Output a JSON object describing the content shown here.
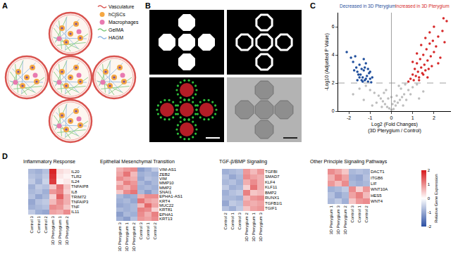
{
  "panels": [
    "A",
    "B",
    "C",
    "D"
  ],
  "diagram": {
    "legend": [
      {
        "label": "Vasculature",
        "color": "#d9534f",
        "marker": "line"
      },
      {
        "label": "hCjSCs",
        "color": "#f5a742",
        "marker": "circle"
      },
      {
        "label": "Macrophages",
        "color": "#e87ab0",
        "marker": "circle"
      },
      {
        "label": "GelMA",
        "color": "#7ac77a",
        "marker": "line"
      },
      {
        "label": "HAGM",
        "color": "#8ab4e0",
        "marker": "line"
      }
    ]
  },
  "chart_data": [
    {
      "type": "scatter",
      "x_label": [
        "Log2 (Fold Changes)",
        "(3D Pterygium / Control)"
      ],
      "y_label": "-Log10 (Adjusted P Value)",
      "xlim": [
        -2.5,
        2.8
      ],
      "xticks": [
        -2,
        -1,
        0,
        1,
        2
      ],
      "ylim": [
        0,
        7
      ],
      "yticks": [
        0,
        2,
        4,
        6
      ],
      "grid": false,
      "marker": "circle",
      "line_style": "dash",
      "threshold_y": 2,
      "threshold_x": 0,
      "annotations": [
        {
          "text": "Decreased in 3D Pterygium",
          "color": "#1f4e9c"
        },
        {
          "text": "Increased in 3D Pterygium",
          "color": "#d62728"
        }
      ],
      "series": [
        {
          "color": "#bdbdbd",
          "x": [
            -1.8,
            -1.5,
            -1.2,
            -1.0,
            -0.8,
            -0.6,
            -0.5,
            -0.4,
            -0.3,
            -0.2,
            -0.1,
            0,
            0.1,
            0.2,
            0.3,
            0.4,
            0.5,
            0.6,
            0.8,
            1.0,
            1.2,
            1.5,
            -0.7,
            -0.35,
            -0.15,
            0.05,
            0.25,
            0.45,
            0.7,
            0.9,
            -0.9,
            -0.45,
            0.15,
            0.35,
            0.55,
            -0.25,
            0.65,
            1.3,
            -1.3,
            0.0
          ],
          "y": [
            1.2,
            1.6,
            1.8,
            1.5,
            1.3,
            1.1,
            0.9,
            0.7,
            0.5,
            0.3,
            0.2,
            0.1,
            0.15,
            0.4,
            0.6,
            0.8,
            1.0,
            1.2,
            1.5,
            1.7,
            1.9,
            1.4,
            0.6,
            1.3,
            0.9,
            0.5,
            1.1,
            1.6,
            0.8,
            1.2,
            0.4,
            0.3,
            0.7,
            1.8,
            0.4,
            1.5,
            1.9,
            0.9,
            0.8,
            1.0
          ]
        },
        {
          "color": "#1f4e9c",
          "x": [
            -2.1,
            -1.9,
            -1.8,
            -1.7,
            -1.65,
            -1.6,
            -1.5,
            -1.45,
            -1.4,
            -1.35,
            -1.3,
            -1.25,
            -1.2,
            -1.15,
            -1.1,
            -1.05,
            -1.0,
            -0.95,
            -1.55,
            -1.75,
            -1.3,
            -1.2,
            -1.4,
            -1.1,
            -0.9,
            -1.6,
            -1.0,
            -1.35,
            -1.5,
            -1.25
          ],
          "y": [
            4.2,
            3.8,
            3.5,
            3.9,
            3.1,
            2.8,
            3.3,
            2.6,
            3.0,
            2.4,
            2.9,
            2.2,
            3.4,
            2.5,
            2.1,
            2.7,
            2.3,
            2.05,
            2.6,
            2.9,
            3.7,
            2.3,
            2.2,
            3.0,
            2.4,
            2.2,
            2.8,
            2.1,
            2.4,
            3.1
          ]
        },
        {
          "color": "#d62728",
          "x": [
            0.8,
            0.9,
            1.0,
            1.05,
            1.1,
            1.15,
            1.2,
            1.25,
            1.3,
            1.35,
            1.4,
            1.45,
            1.5,
            1.55,
            1.6,
            1.65,
            1.7,
            1.75,
            1.8,
            1.85,
            1.9,
            1.95,
            2.0,
            2.1,
            2.2,
            2.3,
            2.4,
            2.5,
            2.6,
            1.0,
            1.2,
            1.4,
            1.6,
            1.8,
            2.0,
            2.2,
            1.3,
            1.5,
            1.7,
            2.45
          ],
          "y": [
            2.1,
            2.3,
            2.6,
            2.2,
            3.0,
            2.5,
            3.4,
            2.8,
            2.4,
            3.7,
            3.1,
            2.7,
            4.0,
            3.3,
            2.9,
            4.4,
            3.6,
            3.0,
            4.8,
            3.9,
            3.2,
            5.0,
            4.2,
            4.6,
            5.3,
            3.8,
            5.7,
            4.9,
            6.4,
            3.5,
            4.1,
            4.7,
            5.2,
            5.6,
            6.0,
            3.4,
            2.2,
            2.6,
            2.4,
            6.6
          ]
        }
      ]
    },
    {
      "type": "heatmap",
      "title": "Inflammatory Response",
      "categories": [
        "Control 3",
        "Control 1",
        "Control 2",
        "3D Pterygium 3",
        "3D Pterygium 1",
        "3D Pterygium 2"
      ],
      "rows": [
        "IL20",
        "TLR2",
        "IL24",
        "TNFAIP8",
        "IL8",
        "TRIM72",
        "TNFAIP3",
        "TNF",
        "IL11"
      ],
      "values": [
        [
          -0.8,
          -0.9,
          -0.7,
          1.9,
          0.3,
          0.2
        ],
        [
          -0.7,
          -0.8,
          -0.6,
          1.8,
          0.2,
          0.1
        ],
        [
          -0.6,
          -0.9,
          -0.5,
          1.7,
          0.1,
          0.2
        ],
        [
          -0.9,
          -0.6,
          -0.7,
          0.5,
          1.2,
          0.5
        ],
        [
          -0.8,
          -0.7,
          -0.9,
          0.9,
          1.1,
          0.4
        ],
        [
          -0.7,
          -1.0,
          -0.8,
          0.4,
          1.4,
          0.7
        ],
        [
          -1.0,
          -0.7,
          -0.6,
          0.6,
          1.0,
          0.7
        ],
        [
          -0.9,
          -0.8,
          -0.7,
          1.0,
          0.9,
          0.5
        ],
        [
          -0.6,
          -0.9,
          -1.0,
          0.8,
          0.7,
          1.0
        ]
      ],
      "zlim": [
        -2,
        2
      ],
      "colors": [
        "#2c4fa3",
        "#ffffff",
        "#d7191c"
      ]
    },
    {
      "type": "heatmap",
      "title": "Epithelial Mesenchymal Transition",
      "categories": [
        "3D Pterygium 3",
        "3D Pterygium 1",
        "3D Pterygium 2",
        "Control 3",
        "Control 1",
        "Control 2"
      ],
      "rows": [
        "VIM-AS1",
        "ZEB2",
        "VIM",
        "MMP10",
        "MMP2",
        "SNAI1",
        "EPHA1-AS1",
        "KRT4",
        "MUC22",
        "KRT81",
        "EPHA1",
        "KRT13"
      ],
      "values": [
        [
          0.7,
          0.9,
          1.0,
          -1.1,
          -0.9,
          -0.6
        ],
        [
          0.8,
          1.2,
          0.6,
          -0.9,
          -0.8,
          -0.9
        ],
        [
          1.0,
          0.8,
          0.7,
          -1.0,
          -0.7,
          -0.8
        ],
        [
          0.6,
          1.1,
          0.9,
          -0.8,
          -1.0,
          -0.8
        ],
        [
          0.9,
          0.7,
          1.0,
          -0.9,
          -0.8,
          -0.9
        ],
        [
          0.5,
          1.0,
          1.2,
          -0.8,
          -1.1,
          -0.8
        ],
        [
          -0.8,
          -1.0,
          -0.9,
          0.7,
          1.0,
          1.0
        ],
        [
          -0.9,
          -0.8,
          -1.0,
          1.2,
          0.8,
          0.7
        ],
        [
          -1.0,
          -0.9,
          -0.8,
          0.6,
          1.3,
          0.8
        ],
        [
          -0.8,
          -0.9,
          -0.8,
          1.1,
          1.0,
          0.4
        ],
        [
          -1.1,
          -0.8,
          -0.9,
          1.0,
          0.7,
          1.1
        ],
        [
          -0.9,
          -1.1,
          -0.7,
          0.9,
          0.8,
          1.0
        ]
      ],
      "zlim": [
        -2,
        2
      ],
      "colors": [
        "#2c4fa3",
        "#ffffff",
        "#d7191c"
      ]
    },
    {
      "type": "heatmap",
      "title": "TGF-β/BMP Signaling",
      "categories": [
        "Control 2",
        "Control 1",
        "Control 3",
        "3D Pterygium 2",
        "3D Pterygium 1",
        "3D Pterygium 3"
      ],
      "rows": [
        "TGFBI",
        "SMAD7",
        "KLF4",
        "KLF11",
        "BMP2",
        "RUNX1",
        "TGFB1I1",
        "TGIF1"
      ],
      "values": [
        [
          -0.9,
          -0.8,
          -0.7,
          0.9,
          0.6,
          0.9
        ],
        [
          -0.7,
          -1.0,
          -0.8,
          1.0,
          0.8,
          0.7
        ],
        [
          -0.8,
          -0.7,
          -0.9,
          0.7,
          1.0,
          0.7
        ],
        [
          -0.6,
          -0.9,
          -0.8,
          0.4,
          1.2,
          0.7
        ],
        [
          -0.9,
          -0.7,
          -0.6,
          1.1,
          0.5,
          0.6
        ],
        [
          -0.8,
          -0.8,
          -0.9,
          0.6,
          0.9,
          1.0
        ],
        [
          -1.0,
          -0.6,
          -0.7,
          0.8,
          0.7,
          0.8
        ],
        [
          -0.7,
          -0.9,
          -0.6,
          0.5,
          0.8,
          0.9
        ]
      ],
      "zlim": [
        -2,
        2
      ],
      "colors": [
        "#2c4fa3",
        "#ffffff",
        "#d7191c"
      ]
    },
    {
      "type": "heatmap",
      "title": "Other Principle Signaling Pathways",
      "categories": [
        "3D Pterygium 1",
        "3D Pterygium 3",
        "3D Pterygium 2",
        "Control 3",
        "Control 1",
        "Control 2"
      ],
      "rows": [
        "DACT1",
        "ITGB6",
        "LIF",
        "WNT10A",
        "HES5",
        "WNT4"
      ],
      "values": [
        [
          1.0,
          0.8,
          0.5,
          -0.8,
          -0.7,
          -0.8
        ],
        [
          0.7,
          1.1,
          0.8,
          -0.9,
          -1.0,
          -0.7
        ],
        [
          0.9,
          0.6,
          1.0,
          -0.8,
          -0.9,
          -0.8
        ],
        [
          -0.9,
          -0.8,
          -0.6,
          1.0,
          0.4,
          0.9
        ],
        [
          -0.7,
          -1.0,
          -0.8,
          0.8,
          1.1,
          0.6
        ],
        [
          -0.8,
          -0.6,
          -0.9,
          0.5,
          0.9,
          1.0
        ]
      ],
      "zlim": [
        -2,
        2
      ],
      "colors": [
        "#2c4fa3",
        "#ffffff",
        "#d7191c"
      ],
      "colorbar": {
        "title": "Relative Gene Expression",
        "ticks": [
          -2,
          -1,
          0,
          1,
          2
        ]
      }
    }
  ]
}
